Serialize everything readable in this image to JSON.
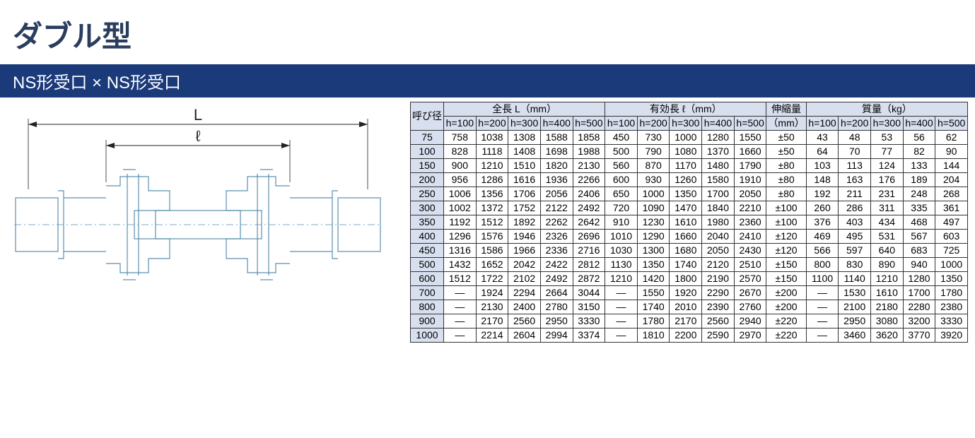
{
  "page_title": "ダブル型",
  "subtitle": "NS形受口 × NS形受口",
  "diagram": {
    "label_L": "L",
    "label_l": "ℓ",
    "stroke": "#5a8fb0",
    "stroke_width": 1.2,
    "dim_stroke": "#222222"
  },
  "table": {
    "header_bg": "#d8e0f0",
    "border": "#333333",
    "col_dia": "呼び径",
    "group_L": "全長 L（mm）",
    "group_l": "有効長 ℓ（mm）",
    "col_ext": "伸縮量",
    "col_ext_sub": "（mm）",
    "group_mass": "質量（kg）",
    "h_labels": [
      "h=100",
      "h=200",
      "h=300",
      "h=400",
      "h=500"
    ],
    "rows": [
      {
        "d": "75",
        "L": [
          "758",
          "1038",
          "1308",
          "1588",
          "1858"
        ],
        "l": [
          "450",
          "730",
          "1000",
          "1280",
          "1550"
        ],
        "e": "±50",
        "m": [
          "43",
          "48",
          "53",
          "56",
          "62"
        ]
      },
      {
        "d": "100",
        "L": [
          "828",
          "1118",
          "1408",
          "1698",
          "1988"
        ],
        "l": [
          "500",
          "790",
          "1080",
          "1370",
          "1660"
        ],
        "e": "±50",
        "m": [
          "64",
          "70",
          "77",
          "82",
          "90"
        ]
      },
      {
        "d": "150",
        "L": [
          "900",
          "1210",
          "1510",
          "1820",
          "2130"
        ],
        "l": [
          "560",
          "870",
          "1170",
          "1480",
          "1790"
        ],
        "e": "±80",
        "m": [
          "103",
          "113",
          "124",
          "133",
          "144"
        ]
      },
      {
        "d": "200",
        "L": [
          "956",
          "1286",
          "1616",
          "1936",
          "2266"
        ],
        "l": [
          "600",
          "930",
          "1260",
          "1580",
          "1910"
        ],
        "e": "±80",
        "m": [
          "148",
          "163",
          "176",
          "189",
          "204"
        ]
      },
      {
        "d": "250",
        "L": [
          "1006",
          "1356",
          "1706",
          "2056",
          "2406"
        ],
        "l": [
          "650",
          "1000",
          "1350",
          "1700",
          "2050"
        ],
        "e": "±80",
        "m": [
          "192",
          "211",
          "231",
          "248",
          "268"
        ]
      },
      {
        "d": "300",
        "L": [
          "1002",
          "1372",
          "1752",
          "2122",
          "2492"
        ],
        "l": [
          "720",
          "1090",
          "1470",
          "1840",
          "2210"
        ],
        "e": "±100",
        "m": [
          "260",
          "286",
          "311",
          "335",
          "361"
        ]
      },
      {
        "d": "350",
        "L": [
          "1192",
          "1512",
          "1892",
          "2262",
          "2642"
        ],
        "l": [
          "910",
          "1230",
          "1610",
          "1980",
          "2360"
        ],
        "e": "±100",
        "m": [
          "376",
          "403",
          "434",
          "468",
          "497"
        ]
      },
      {
        "d": "400",
        "L": [
          "1296",
          "1576",
          "1946",
          "2326",
          "2696"
        ],
        "l": [
          "1010",
          "1290",
          "1660",
          "2040",
          "2410"
        ],
        "e": "±120",
        "m": [
          "469",
          "495",
          "531",
          "567",
          "603"
        ]
      },
      {
        "d": "450",
        "L": [
          "1316",
          "1586",
          "1966",
          "2336",
          "2716"
        ],
        "l": [
          "1030",
          "1300",
          "1680",
          "2050",
          "2430"
        ],
        "e": "±120",
        "m": [
          "566",
          "597",
          "640",
          "683",
          "725"
        ]
      },
      {
        "d": "500",
        "L": [
          "1432",
          "1652",
          "2042",
          "2422",
          "2812"
        ],
        "l": [
          "1130",
          "1350",
          "1740",
          "2120",
          "2510"
        ],
        "e": "±150",
        "m": [
          "800",
          "830",
          "890",
          "940",
          "1000"
        ]
      },
      {
        "d": "600",
        "L": [
          "1512",
          "1722",
          "2102",
          "2492",
          "2872"
        ],
        "l": [
          "1210",
          "1420",
          "1800",
          "2190",
          "2570"
        ],
        "e": "±150",
        "m": [
          "1100",
          "1140",
          "1210",
          "1280",
          "1350"
        ]
      },
      {
        "d": "700",
        "L": [
          "—",
          "1924",
          "2294",
          "2664",
          "3044"
        ],
        "l": [
          "—",
          "1550",
          "1920",
          "2290",
          "2670"
        ],
        "e": "±200",
        "m": [
          "—",
          "1530",
          "1610",
          "1700",
          "1780"
        ]
      },
      {
        "d": "800",
        "L": [
          "—",
          "2130",
          "2400",
          "2780",
          "3150"
        ],
        "l": [
          "—",
          "1740",
          "2010",
          "2390",
          "2760"
        ],
        "e": "±200",
        "m": [
          "—",
          "2100",
          "2180",
          "2280",
          "2380"
        ]
      },
      {
        "d": "900",
        "L": [
          "—",
          "2170",
          "2560",
          "2950",
          "3330"
        ],
        "l": [
          "—",
          "1780",
          "2170",
          "2560",
          "2940"
        ],
        "e": "±220",
        "m": [
          "—",
          "2950",
          "3080",
          "3200",
          "3330"
        ]
      },
      {
        "d": "1000",
        "L": [
          "—",
          "2214",
          "2604",
          "2994",
          "3374"
        ],
        "l": [
          "—",
          "1810",
          "2200",
          "2590",
          "2970"
        ],
        "e": "±220",
        "m": [
          "—",
          "3460",
          "3620",
          "3770",
          "3920"
        ]
      }
    ]
  }
}
